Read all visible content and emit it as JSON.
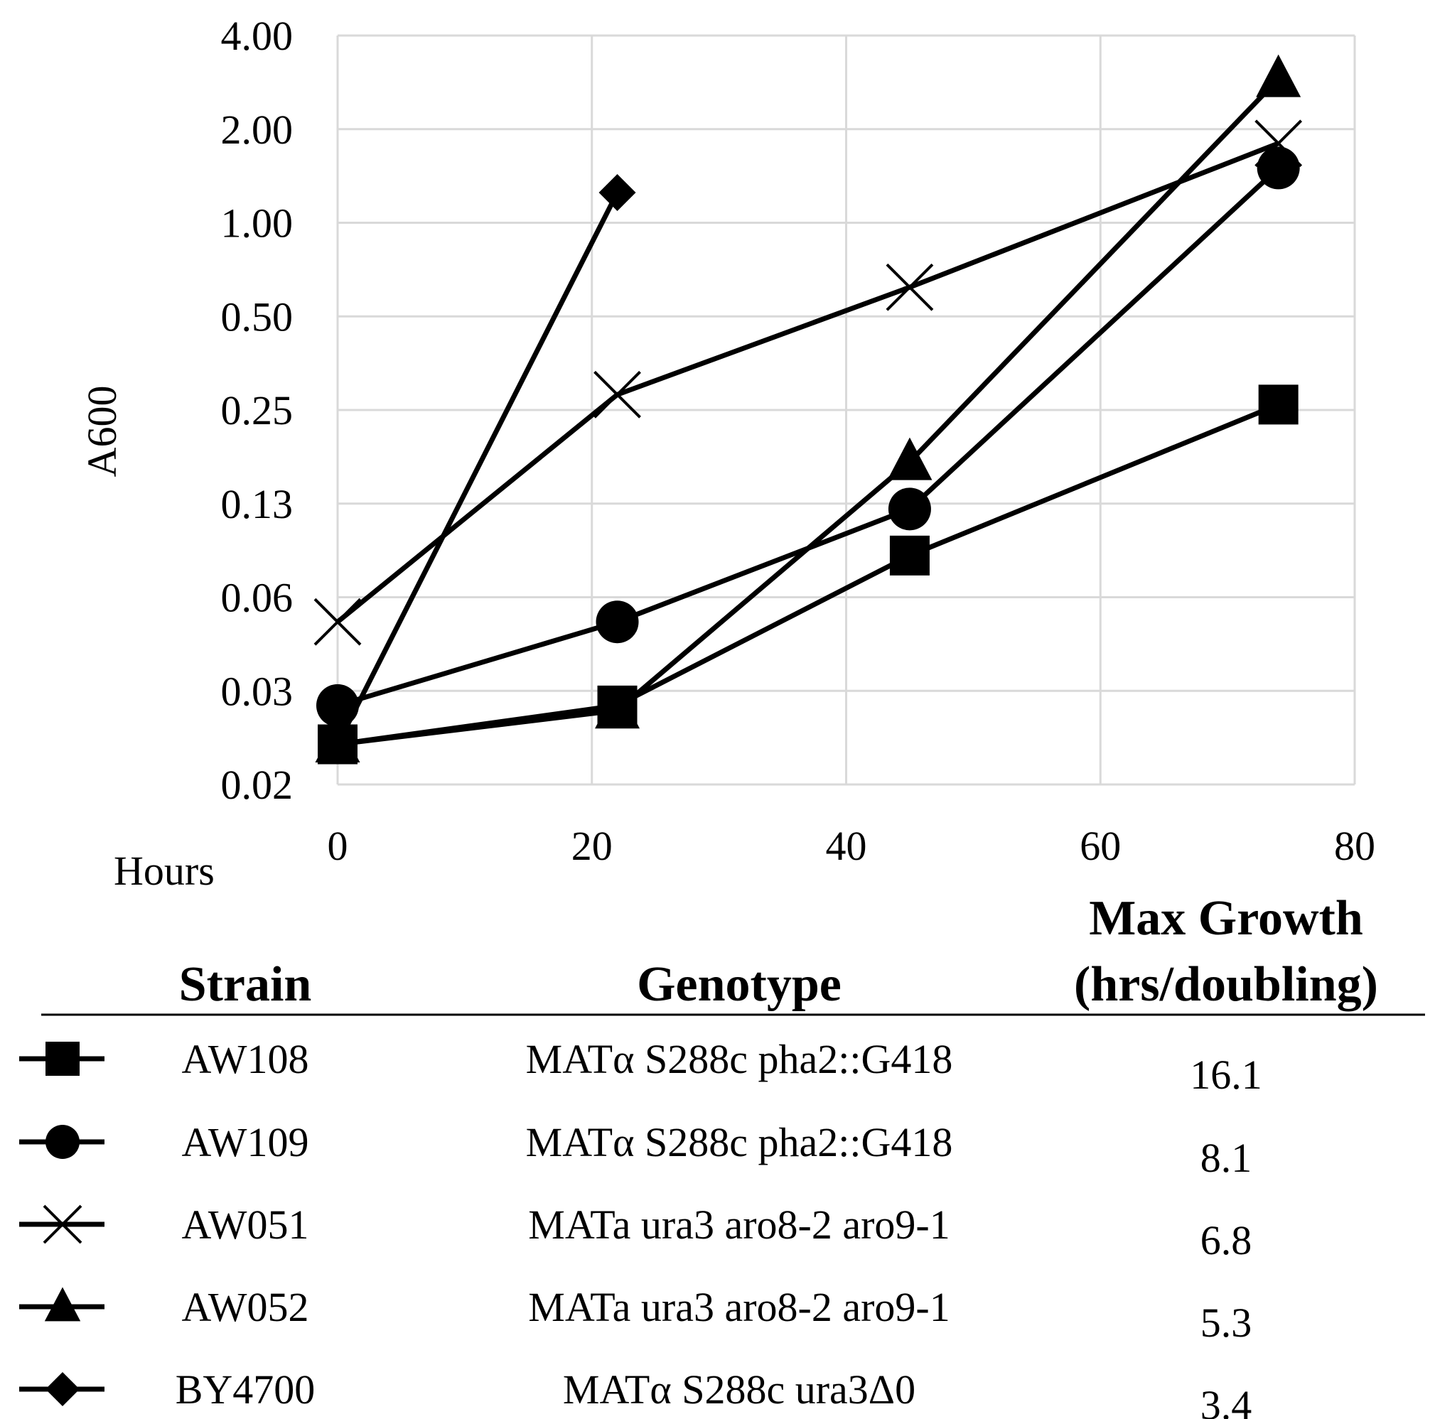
{
  "chart_data": {
    "type": "line",
    "ylabel": "A600",
    "xlabel": "Hours",
    "y_scale": "log2",
    "y_ticks": [
      "4.00",
      "2.00",
      "1.00",
      "0.50",
      "0.25",
      "0.13",
      "0.06",
      "0.03",
      "0.02"
    ],
    "x_ticks": [
      "0",
      "20",
      "40",
      "60",
      "80"
    ],
    "xlim": [
      0,
      80
    ],
    "ylim": [
      0.0156,
      4.0
    ],
    "grid": true,
    "series": [
      {
        "name": "AW108",
        "marker": "square",
        "x": [
          0,
          22,
          45,
          74
        ],
        "y": [
          0.021,
          0.028,
          0.085,
          0.26
        ]
      },
      {
        "name": "AW109",
        "marker": "circle",
        "x": [
          0,
          22,
          45,
          74
        ],
        "y": [
          0.028,
          0.052,
          0.12,
          1.5
        ]
      },
      {
        "name": "AW051",
        "marker": "cross",
        "x": [
          0,
          22,
          45,
          74
        ],
        "y": [
          0.052,
          0.28,
          0.62,
          1.8
        ]
      },
      {
        "name": "AW052",
        "marker": "triangle",
        "x": [
          0,
          22,
          45,
          74
        ],
        "y": [
          0.021,
          0.027,
          0.17,
          2.9
        ]
      },
      {
        "name": "BY4700",
        "marker": "diamond",
        "x": [
          0,
          22
        ],
        "y": [
          0.021,
          1.25
        ]
      }
    ]
  },
  "table": {
    "headers": {
      "strain": "Strain",
      "genotype": "Genotype",
      "growth_line1": "Max Growth",
      "growth_line2": "(hrs/doubling)"
    },
    "rows": [
      {
        "marker": "square",
        "strain": "AW108",
        "genotype": "MATα S288c pha2::G418",
        "growth": "16.1"
      },
      {
        "marker": "circle",
        "strain": "AW109",
        "genotype": "MATα S288c pha2::G418",
        "growth": "8.1"
      },
      {
        "marker": "cross",
        "strain": "AW051",
        "genotype": "MATa ura3 aro8-2 aro9-1",
        "growth": "6.8"
      },
      {
        "marker": "triangle",
        "strain": "AW052",
        "genotype": "MATa ura3 aro8-2 aro9-1",
        "growth": "5.3"
      },
      {
        "marker": "diamond",
        "strain": "BY4700",
        "genotype": "MATα S288c ura3Δ0",
        "growth": "3.4"
      }
    ]
  },
  "colors": {
    "line": "#000000",
    "grid": "#d9d9d9"
  }
}
